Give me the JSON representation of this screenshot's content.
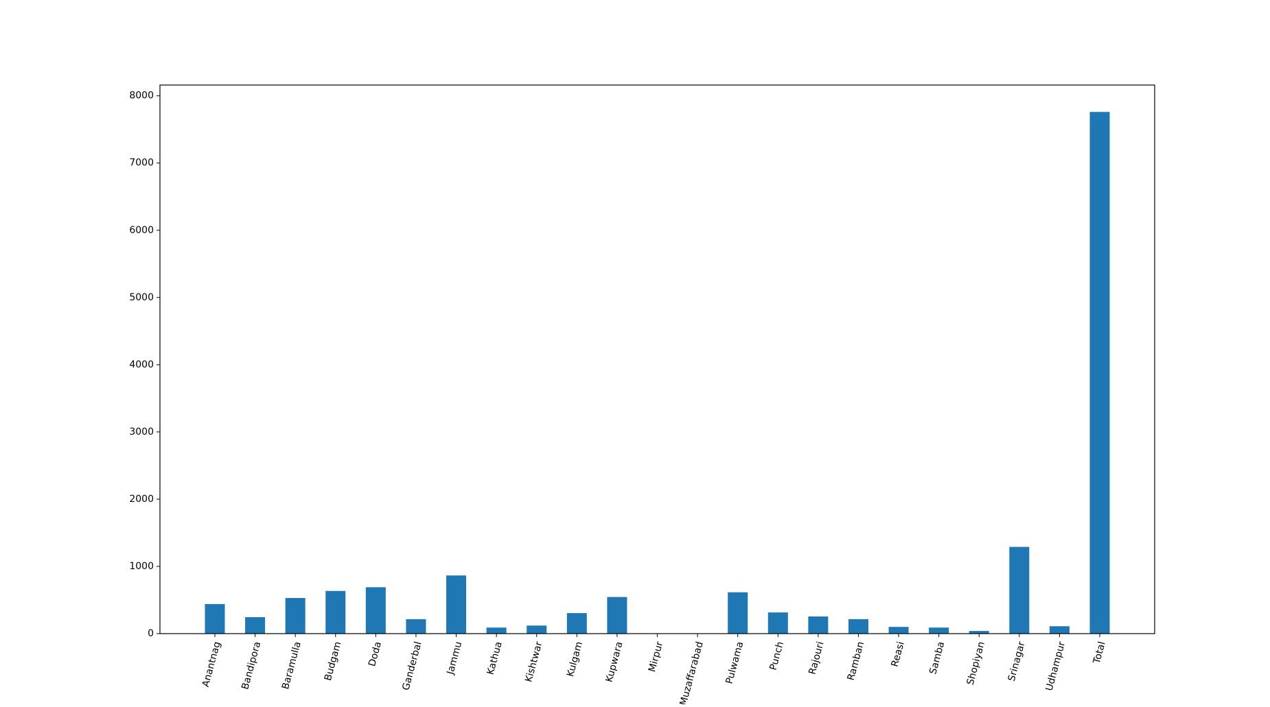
{
  "chart_data": {
    "type": "bar",
    "title": "",
    "xlabel": "",
    "ylabel": "",
    "ylim": [
      0,
      8160
    ],
    "yticks": [
      0,
      1000,
      2000,
      3000,
      4000,
      5000,
      6000,
      7000,
      8000
    ],
    "grid": false,
    "legend": "none",
    "bar_color": "#1f77b4",
    "categories": [
      "Anantnag",
      "Bandipora",
      "Baramulla",
      "Budgam",
      "Doda",
      "Ganderbal",
      "Jammu",
      "Kathua",
      "Kishtwar",
      "Kulgam",
      "Kupwara",
      "Mirpur",
      "Muzaffarabad",
      "Pulwama",
      "Punch",
      "Rajouri",
      "Ramban",
      "Reasi",
      "Samba",
      "Shopiyan",
      "Srinagar",
      "Udhampur",
      "Total"
    ],
    "values": [
      440,
      245,
      530,
      635,
      690,
      215,
      865,
      90,
      120,
      305,
      545,
      0,
      0,
      615,
      315,
      255,
      215,
      100,
      90,
      40,
      1290,
      110,
      7760
    ]
  }
}
